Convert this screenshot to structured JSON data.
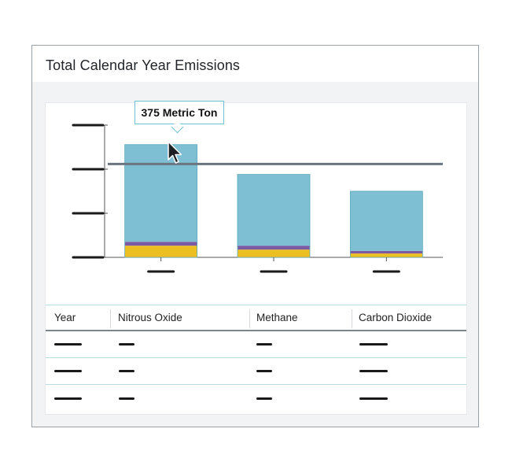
{
  "title": "Total Calendar Year Emissions",
  "tooltip": {
    "text": "375 Metric Ton"
  },
  "chart_data": {
    "type": "bar",
    "stacked": true,
    "categories": [
      "",
      "",
      ""
    ],
    "series": [
      {
        "values": [
          45,
          30,
          15
        ],
        "color": "#ecc023"
      },
      {
        "values": [
          15,
          15,
          10
        ],
        "color": "#7b5aa4"
      },
      {
        "values": [
          375,
          275,
          230
        ],
        "color": "#7ebfd3"
      }
    ],
    "reference_line": 360,
    "ylim": [
      0,
      510
    ],
    "y_ticks": [
      "",
      "",
      "",
      ""
    ],
    "grid": false,
    "legend": "none"
  },
  "table": {
    "columns": [
      "Year",
      "Nitrous Oxide",
      "Methane",
      "Carbon Dioxide"
    ],
    "rows": [
      [
        "",
        "",
        "",
        ""
      ],
      [
        "",
        "",
        "",
        ""
      ],
      [
        "",
        "",
        "",
        ""
      ]
    ]
  }
}
